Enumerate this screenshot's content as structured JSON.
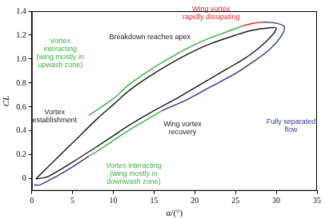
{
  "chart_data": {
    "type": "line",
    "x_label": "α/(°)",
    "y_label": "CL",
    "xlim": [
      0,
      35
    ],
    "xticks": [
      0,
      5,
      10,
      15,
      20,
      25,
      30,
      35
    ],
    "ylim": [
      -0.1,
      1.4
    ],
    "yticks": [
      0,
      0.2,
      0.4,
      0.6,
      0.8,
      {
        "value": 1,
        "label": "1.0"
      },
      1.2,
      1.4
    ],
    "grid": false,
    "marker": "none",
    "line_style": "solid",
    "series": [
      {
        "color": "#1a1a1a",
        "x": [
          0.5,
          2,
          5,
          8,
          10,
          12,
          15,
          18,
          20,
          22,
          25,
          27,
          29,
          30,
          29.5,
          28,
          26,
          24,
          20,
          18,
          15,
          12,
          10,
          8,
          5,
          2,
          0.5
        ],
        "values": [
          0.0,
          0.1,
          0.3,
          0.5,
          0.62,
          0.74,
          0.88,
          1.0,
          1.07,
          1.13,
          1.2,
          1.24,
          1.26,
          1.26,
          1.2,
          1.1,
          1.0,
          0.92,
          0.76,
          0.68,
          0.57,
          0.45,
          0.36,
          0.27,
          0.14,
          0.02,
          0.0
        ]
      },
      {
        "color": "#3cb043",
        "x": [
          7,
          10,
          12,
          15,
          18,
          20,
          22,
          24,
          26
        ],
        "values": [
          0.53,
          0.67,
          0.79,
          0.93,
          1.05,
          1.12,
          1.18,
          1.23,
          1.28
        ]
      },
      {
        "color": "#e8202a",
        "x": [
          26,
          27.3,
          28.5
        ],
        "values": [
          1.28,
          1.3,
          1.31
        ]
      },
      {
        "color": "#2b3990",
        "x": [
          28.5,
          30,
          31,
          30.5,
          29,
          27,
          25,
          22,
          19,
          16
        ],
        "values": [
          1.31,
          1.3,
          1.27,
          1.18,
          1.07,
          0.97,
          0.88,
          0.77,
          0.66,
          0.57
        ]
      },
      {
        "color": "#3cb043",
        "x": [
          16,
          14,
          12,
          10,
          8,
          7
        ],
        "values": [
          0.57,
          0.49,
          0.41,
          0.32,
          0.23,
          0.19
        ]
      },
      {
        "color": "#2b3990",
        "x": [
          7,
          5,
          3,
          1,
          0.3
        ],
        "values": [
          0.19,
          0.1,
          0.02,
          -0.05,
          -0.05
        ]
      }
    ],
    "annotations": [
      {
        "text": [
          "Wing vortex",
          "rapidly dissipating"
        ],
        "color": "#e8202a",
        "x": 22,
        "y": 1.38
      },
      {
        "text": [
          "Breakdown reaches apex"
        ],
        "color": "#1a1a1a",
        "x": 14.5,
        "y": 1.18
      },
      {
        "text": [
          "Vortex",
          "interacting",
          "(wing mostly in",
          "upwash zone)"
        ],
        "color": "#3cb043",
        "x": 3.5,
        "y": 1.05
      },
      {
        "text": [
          "Vortex",
          "establishment"
        ],
        "color": "#1a1a1a",
        "x": 2.8,
        "y": 0.52
      },
      {
        "text": [
          "Wing vortex",
          "recovery"
        ],
        "color": "#1a1a1a",
        "x": 18.5,
        "y": 0.42
      },
      {
        "text": [
          "Fully separated",
          "flow"
        ],
        "color": "#2b3990",
        "x": 31.8,
        "y": 0.44
      },
      {
        "text": [
          "Vortex interacting",
          "(wing mostly in",
          "downwash zone)"
        ],
        "color": "#3cb043",
        "x": 12.5,
        "y": 0.04
      }
    ]
  }
}
